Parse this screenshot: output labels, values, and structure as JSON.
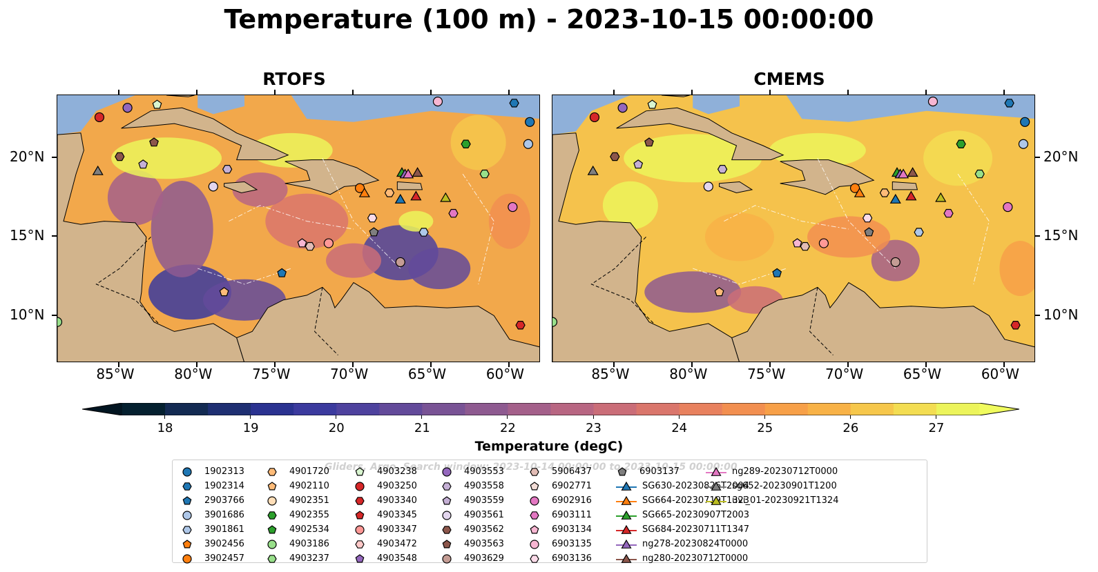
{
  "title": "Temperature (100 m) - 2023-10-15 00:00:00",
  "panels": [
    {
      "title": "RTOFS"
    },
    {
      "title": "CMEMS"
    }
  ],
  "map_extent": {
    "lon": [
      -89,
      -58
    ],
    "lat": [
      7,
      24
    ]
  },
  "lon_ticks": [
    "85°W",
    "80°W",
    "75°W",
    "70°W",
    "65°W",
    "60°W"
  ],
  "lat_ticks": [
    "20°N",
    "15°N",
    "10°N"
  ],
  "colorbar": {
    "label": "Temperature (degC)",
    "range": [
      17.5,
      27.5
    ],
    "ticks": [
      "18",
      "19",
      "20",
      "21",
      "22",
      "23",
      "24",
      "25",
      "26",
      "27"
    ],
    "colors": [
      "#04202f",
      "#132a52",
      "#1e2f72",
      "#2a3290",
      "#3b3a9e",
      "#4e429e",
      "#634a9a",
      "#795395",
      "#8e5a90",
      "#a4608a",
      "#b86682",
      "#ca6d78",
      "#da766c",
      "#e8815e",
      "#f28f50",
      "#f7a048",
      "#f8b247",
      "#f6c74b",
      "#f3dd52",
      "#ecf45b"
    ]
  },
  "colors": {
    "land": "#d2b48c",
    "shallow": "#8fb0d9",
    "deep_pacific": "#0a2233"
  },
  "legend_watermark": "Gliders, Argo, Search window: 2023-10-14 00:00:00 to 2023-10-15 00:00:00",
  "legend": [
    {
      "label": "1902313",
      "marker": "circle",
      "color": "#1f77b4"
    },
    {
      "label": "1902314",
      "marker": "hexagon",
      "color": "#1f77b4"
    },
    {
      "label": "2903766",
      "marker": "pentagon",
      "color": "#1f77b4"
    },
    {
      "label": "3901686",
      "marker": "circle",
      "color": "#aec7e8"
    },
    {
      "label": "3901861",
      "marker": "hexagon",
      "color": "#aec7e8"
    },
    {
      "label": "3902456",
      "marker": "pentagon",
      "color": "#ff7f0e"
    },
    {
      "label": "3902457",
      "marker": "circle",
      "color": "#ff7f0e"
    },
    {
      "label": "4901720",
      "marker": "hexagon",
      "color": "#ffbb78"
    },
    {
      "label": "4902110",
      "marker": "pentagon",
      "color": "#ffbb78"
    },
    {
      "label": "4902351",
      "marker": "circle",
      "color": "#ffdeb8"
    },
    {
      "label": "4902355",
      "marker": "hexagon",
      "color": "#2ca02c"
    },
    {
      "label": "4902534",
      "marker": "pentagon",
      "color": "#2ca02c"
    },
    {
      "label": "4903186",
      "marker": "circle",
      "color": "#98df8a"
    },
    {
      "label": "4903237",
      "marker": "hexagon",
      "color": "#98df8a"
    },
    {
      "label": "4903238",
      "marker": "pentagon",
      "color": "#d9f5d0"
    },
    {
      "label": "4903250",
      "marker": "circle",
      "color": "#d62728"
    },
    {
      "label": "4903340",
      "marker": "hexagon",
      "color": "#d62728"
    },
    {
      "label": "4903345",
      "marker": "pentagon",
      "color": "#d62728"
    },
    {
      "label": "4903347",
      "marker": "circle",
      "color": "#ff9896"
    },
    {
      "label": "4903472",
      "marker": "hexagon",
      "color": "#ffc9c8"
    },
    {
      "label": "4903548",
      "marker": "pentagon",
      "color": "#9467bd"
    },
    {
      "label": "4903553",
      "marker": "circle",
      "color": "#9467bd"
    },
    {
      "label": "4903558",
      "marker": "hexagon",
      "color": "#c5b0d5"
    },
    {
      "label": "4903559",
      "marker": "pentagon",
      "color": "#c5b0d5"
    },
    {
      "label": "4903561",
      "marker": "circle",
      "color": "#e3d6ee"
    },
    {
      "label": "4903562",
      "marker": "hexagon",
      "color": "#8c564b"
    },
    {
      "label": "4903563",
      "marker": "pentagon",
      "color": "#8c564b"
    },
    {
      "label": "4903629",
      "marker": "circle",
      "color": "#c49c94"
    },
    {
      "label": "5906437",
      "marker": "hexagon",
      "color": "#e2bcb5"
    },
    {
      "label": "6902771",
      "marker": "pentagon",
      "color": "#f2dcd6"
    },
    {
      "label": "6902916",
      "marker": "circle",
      "color": "#e377c2"
    },
    {
      "label": "6903111",
      "marker": "hexagon",
      "color": "#e377c2"
    },
    {
      "label": "6903134",
      "marker": "pentagon",
      "color": "#f7b6d2"
    },
    {
      "label": "6903135",
      "marker": "circle",
      "color": "#f7b6d2"
    },
    {
      "label": "6903136",
      "marker": "hexagon",
      "color": "#fbdbe9"
    },
    {
      "label": "6903137",
      "marker": "pentagon",
      "color": "#7f7f7f"
    },
    {
      "label": "SG630-20230826T2004",
      "marker": "triangle-line",
      "color": "#1f77b4"
    },
    {
      "label": "SG664-20230719T1323",
      "marker": "triangle-line",
      "color": "#ff7f0e"
    },
    {
      "label": "SG665-20230907T2003",
      "marker": "triangle-line",
      "color": "#2ca02c"
    },
    {
      "label": "SG684-20230711T1347",
      "marker": "triangle-line",
      "color": "#d62728"
    },
    {
      "label": "ng278-20230824T0000",
      "marker": "triangle-line",
      "color": "#9467bd"
    },
    {
      "label": "ng280-20230712T0000",
      "marker": "triangle-line",
      "color": "#8c564b"
    },
    {
      "label": "ng289-20230712T0000",
      "marker": "triangle-line",
      "color": "#e377c2"
    },
    {
      "label": "sg652-20230901T1200",
      "marker": "triangle-line",
      "color": "#7f7f7f"
    },
    {
      "label": "uvi_01-20230921T1324",
      "marker": "triangle-line",
      "color": "#bcbd22"
    }
  ],
  "observations": [
    {
      "id": "1902313",
      "lon": -58.7,
      "lat": 22.3
    },
    {
      "id": "1902314",
      "lon": -59.7,
      "lat": 23.5
    },
    {
      "id": "3901686",
      "lon": -58.8,
      "lat": 20.9
    },
    {
      "id": "4903250",
      "lon": -86.3,
      "lat": 22.6
    },
    {
      "id": "4903553",
      "lon": -84.5,
      "lat": 23.2
    },
    {
      "id": "4903562",
      "lon": -85.0,
      "lat": 20.1
    },
    {
      "id": "4903563",
      "lon": -82.8,
      "lat": 21.0
    },
    {
      "id": "4903238",
      "lon": -82.6,
      "lat": 23.4
    },
    {
      "id": "4903559",
      "lon": -83.5,
      "lat": 19.6
    },
    {
      "id": "4903558",
      "lon": -78.1,
      "lat": 19.3
    },
    {
      "id": "4903561",
      "lon": -79.0,
      "lat": 18.2
    },
    {
      "id": "4902355",
      "lon": -62.8,
      "lat": 20.9
    },
    {
      "id": "4903237",
      "lon": -61.6,
      "lat": 19.0
    },
    {
      "id": "3902457",
      "lon": -69.6,
      "lat": 18.1
    },
    {
      "id": "4901720",
      "lon": -67.7,
      "lat": 17.8
    },
    {
      "id": "6903135",
      "lon": -64.6,
      "lat": 23.6
    },
    {
      "id": "6902916",
      "lon": -59.8,
      "lat": 16.9
    },
    {
      "id": "6903111",
      "lon": -63.6,
      "lat": 16.5
    },
    {
      "id": "3901861",
      "lon": -65.5,
      "lat": 15.3
    },
    {
      "id": "6903136",
      "lon": -68.8,
      "lat": 16.2
    },
    {
      "id": "6903137",
      "lon": -68.7,
      "lat": 15.3
    },
    {
      "id": "6903134",
      "lon": -73.3,
      "lat": 14.6
    },
    {
      "id": "5906437",
      "lon": -72.8,
      "lat": 14.4
    },
    {
      "id": "4903347",
      "lon": -71.6,
      "lat": 14.6
    },
    {
      "id": "4903629",
      "lon": -67.0,
      "lat": 13.4
    },
    {
      "id": "2903766",
      "lon": -74.6,
      "lat": 12.7
    },
    {
      "id": "4902110",
      "lon": -78.3,
      "lat": 11.5
    },
    {
      "id": "4903340",
      "lon": -59.3,
      "lat": 9.4
    },
    {
      "id": "4903186",
      "lon": -89.0,
      "lat": 9.6
    },
    {
      "id": "SG630-20230826T2004",
      "lon": -67.0,
      "lat": 17.4
    },
    {
      "id": "SG664-20230719T1323",
      "lon": -69.3,
      "lat": 17.8
    },
    {
      "id": "SG665-20230907T2003",
      "lon": -66.9,
      "lat": 19.1
    },
    {
      "id": "SG684-20230711T1347",
      "lon": -66.0,
      "lat": 17.6
    },
    {
      "id": "ng278-20230824T0000",
      "lon": -66.7,
      "lat": 19.0
    },
    {
      "id": "ng280-20230712T0000",
      "lon": -65.9,
      "lat": 19.1
    },
    {
      "id": "ng289-20230712T0000",
      "lon": -66.5,
      "lat": 19.0
    },
    {
      "id": "sg652-20230901T1200",
      "lon": -86.4,
      "lat": 19.2
    },
    {
      "id": "uvi_01-20230921T1324",
      "lon": -64.1,
      "lat": 17.5
    }
  ]
}
